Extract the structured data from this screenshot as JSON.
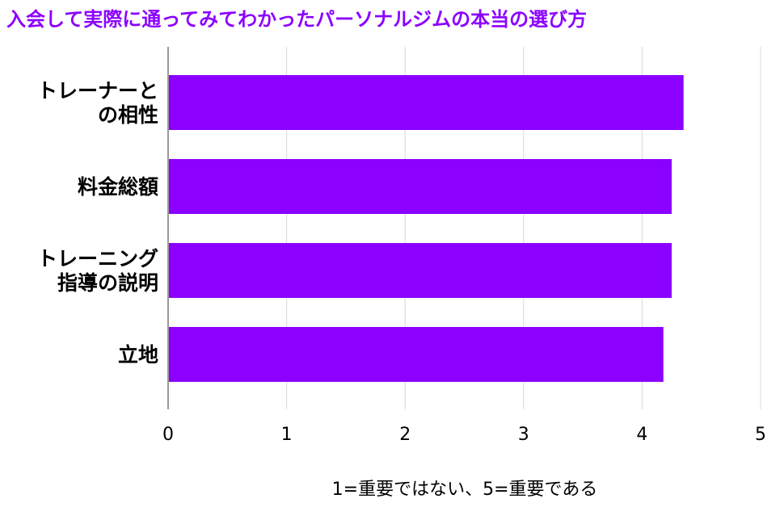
{
  "chart_data": {
    "type": "bar",
    "orientation": "horizontal",
    "title": "入会して実際に通ってみてわかったパーソナルジムの本当の選び方",
    "xlabel": "1=重要ではない、5=重要である",
    "ylabel": "",
    "categories": [
      [
        "トレーナーと",
        "の相性"
      ],
      [
        "料金総額"
      ],
      [
        "トレーニング",
        "指導の説明"
      ],
      [
        "立地"
      ]
    ],
    "values": [
      4.35,
      4.25,
      4.25,
      4.18
    ],
    "xlim": [
      0,
      5
    ],
    "xticks": [
      "0",
      "1",
      "2",
      "3",
      "4",
      "5"
    ],
    "grid": true,
    "legend": "none",
    "colors": {
      "bar": "#8B00FF",
      "title": "#8B00FF",
      "grid": "#D9D9D9",
      "axis": "#333333"
    }
  }
}
